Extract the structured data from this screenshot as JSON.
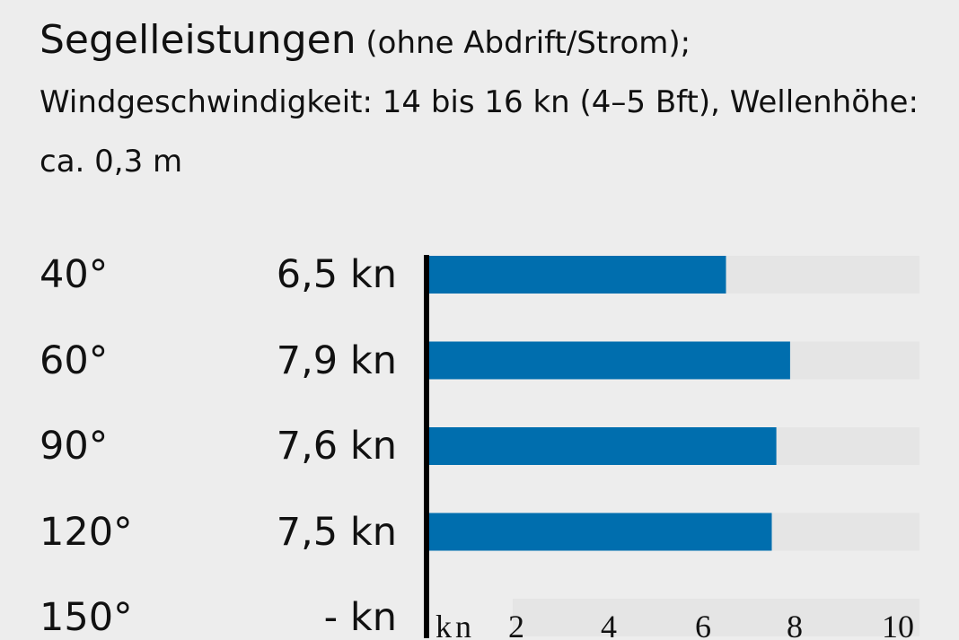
{
  "title": {
    "main": "Segelleistungen",
    "rest": " (ohne Abdrift/Strom); Windgeschwindigkeit: 14 bis 16 kn (4–5 Bft), Wellenhöhe: ca. 0,3 m"
  },
  "chart_data": {
    "type": "bar",
    "orientation": "horizontal",
    "categories": [
      "40°",
      "60°",
      "90°",
      "120°",
      "150°"
    ],
    "values": [
      6.5,
      7.9,
      7.6,
      7.5,
      null
    ],
    "value_labels": [
      "6,5 kn",
      "7,9 kn",
      "7,6 kn",
      "7,5 kn",
      "- kn"
    ],
    "xlabel": "kn",
    "xticks": [
      "2",
      "4",
      "6",
      "8",
      "10"
    ],
    "xlim": [
      0,
      10.7
    ],
    "grid": false,
    "colors": {
      "bar": "#006eae",
      "track": "#e5e5e5",
      "background": "#ededed",
      "axis": "#000000"
    }
  }
}
